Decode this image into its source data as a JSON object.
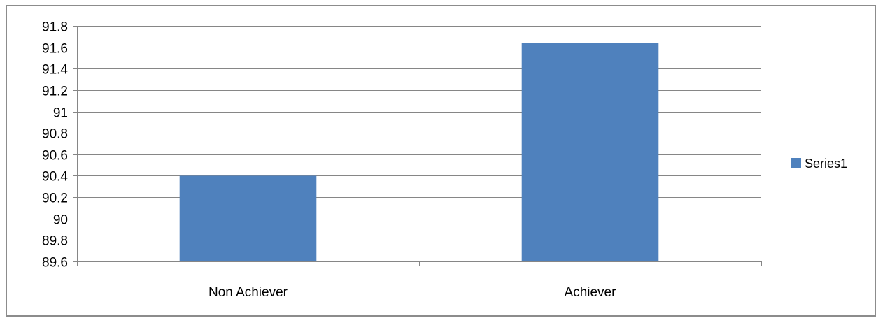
{
  "chart_data": {
    "type": "bar",
    "categories": [
      "Non Achiever",
      "Achiever"
    ],
    "series": [
      {
        "name": "Series1",
        "values": [
          90.4,
          91.64
        ],
        "color": "#4f81bd"
      }
    ],
    "title": "",
    "xlabel": "",
    "ylabel": "",
    "ylim": [
      89.6,
      91.8
    ],
    "yticks": [
      "89.6",
      "89.8",
      "90",
      "90.2",
      "90.4",
      "90.6",
      "90.8",
      "91",
      "91.2",
      "91.4",
      "91.6",
      "91.8"
    ],
    "grid": true,
    "legend_position": "right"
  }
}
